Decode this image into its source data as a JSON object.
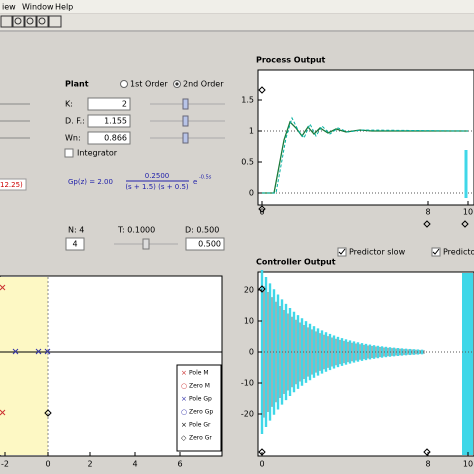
{
  "menu": [
    "iew",
    "Window",
    "Help"
  ],
  "plant": {
    "title": "Plant",
    "order_options": [
      "1st Order",
      "2nd Order"
    ],
    "k_label": "K:",
    "k_value": "2",
    "df_label": "D. F.:",
    "df_value": "1.155",
    "wn_label": "Wn:",
    "wn_value": "0.866",
    "integrator": "Integrator"
  },
  "left_cut": {
    "red_text": "12.25)"
  },
  "formula": {
    "lhs": "Gp(z) = 2.00",
    "num": "0.2500",
    "den": "(s + 1.5) (s + 0.5)",
    "exp": "e",
    "exp_power": "-0.5s"
  },
  "sampling": {
    "n_label": "N: 4",
    "n_value": "4",
    "t_label": "T: 0.1000",
    "d_label": "D: 0.500",
    "d_value": "0.500"
  },
  "pole_zero_plot": {
    "xticks": [
      "-2",
      "0",
      "2",
      "4",
      "6"
    ],
    "legend": [
      "Pole M",
      "Zero M",
      "Pole Gp",
      "Zero Gp",
      "Pole Gr",
      "Zero Gr"
    ]
  },
  "process_output": {
    "title": "Process Output",
    "yticks": [
      "1.5",
      "1",
      "0.5",
      "0"
    ],
    "xticks": [
      "0",
      "8",
      "10"
    ],
    "checkboxes": [
      "Predictor slow",
      "Predicto"
    ]
  },
  "controller_output": {
    "title": "Controller Output",
    "yticks": [
      "20",
      "10",
      "0",
      "-10",
      "-20"
    ],
    "xticks": [
      "0",
      "8",
      "10"
    ]
  }
}
